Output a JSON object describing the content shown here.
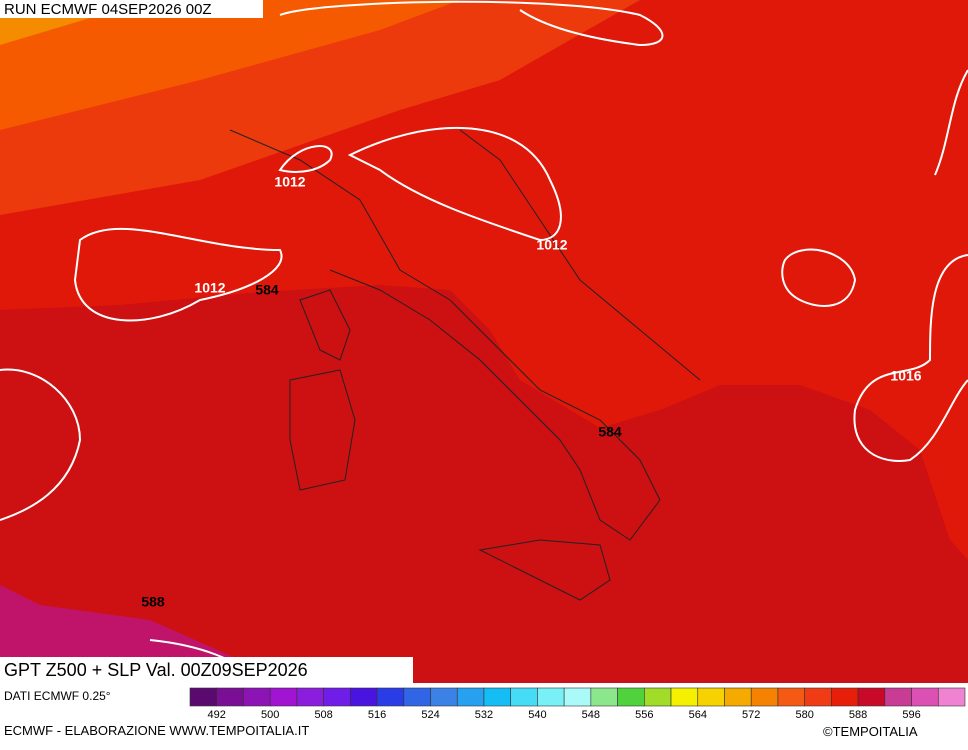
{
  "header": {
    "run": "RUN ECMWF 04SEP2026 00Z"
  },
  "map": {
    "isobar_labels": [
      "1012",
      "1012",
      "1012",
      "1016"
    ],
    "height_labels": [
      "584",
      "584",
      "588"
    ]
  },
  "footer": {
    "title": "GPT Z500 + SLP Val. 00Z09SEP2026",
    "source": "DATI ECMWF 0.25°",
    "credit": "ECMWF - ELABORAZIONE WWW.TEMPOITALIA.IT",
    "copyright": "©TEMPOITALIA"
  },
  "legend": {
    "labels": [
      492,
      500,
      508,
      516,
      524,
      532,
      540,
      548,
      556,
      564,
      572,
      580,
      588,
      596
    ],
    "colors": [
      "#5a0a6e",
      "#7a0f96",
      "#8c14b4",
      "#a014d2",
      "#8a1edc",
      "#6e1ee6",
      "#4a14e0",
      "#2a3ce6",
      "#3264e6",
      "#3c82e6",
      "#28a0f0",
      "#14bef5",
      "#46dcf5",
      "#78f0f5",
      "#aafafa",
      "#8ce68c",
      "#50d23c",
      "#a0dc28",
      "#f5f000",
      "#f5d200",
      "#f5aa00",
      "#f58200",
      "#f55a14",
      "#f03c14",
      "#e61e0a",
      "#c80a28",
      "#c83c96",
      "#dc50b4",
      "#f082d2"
    ]
  }
}
